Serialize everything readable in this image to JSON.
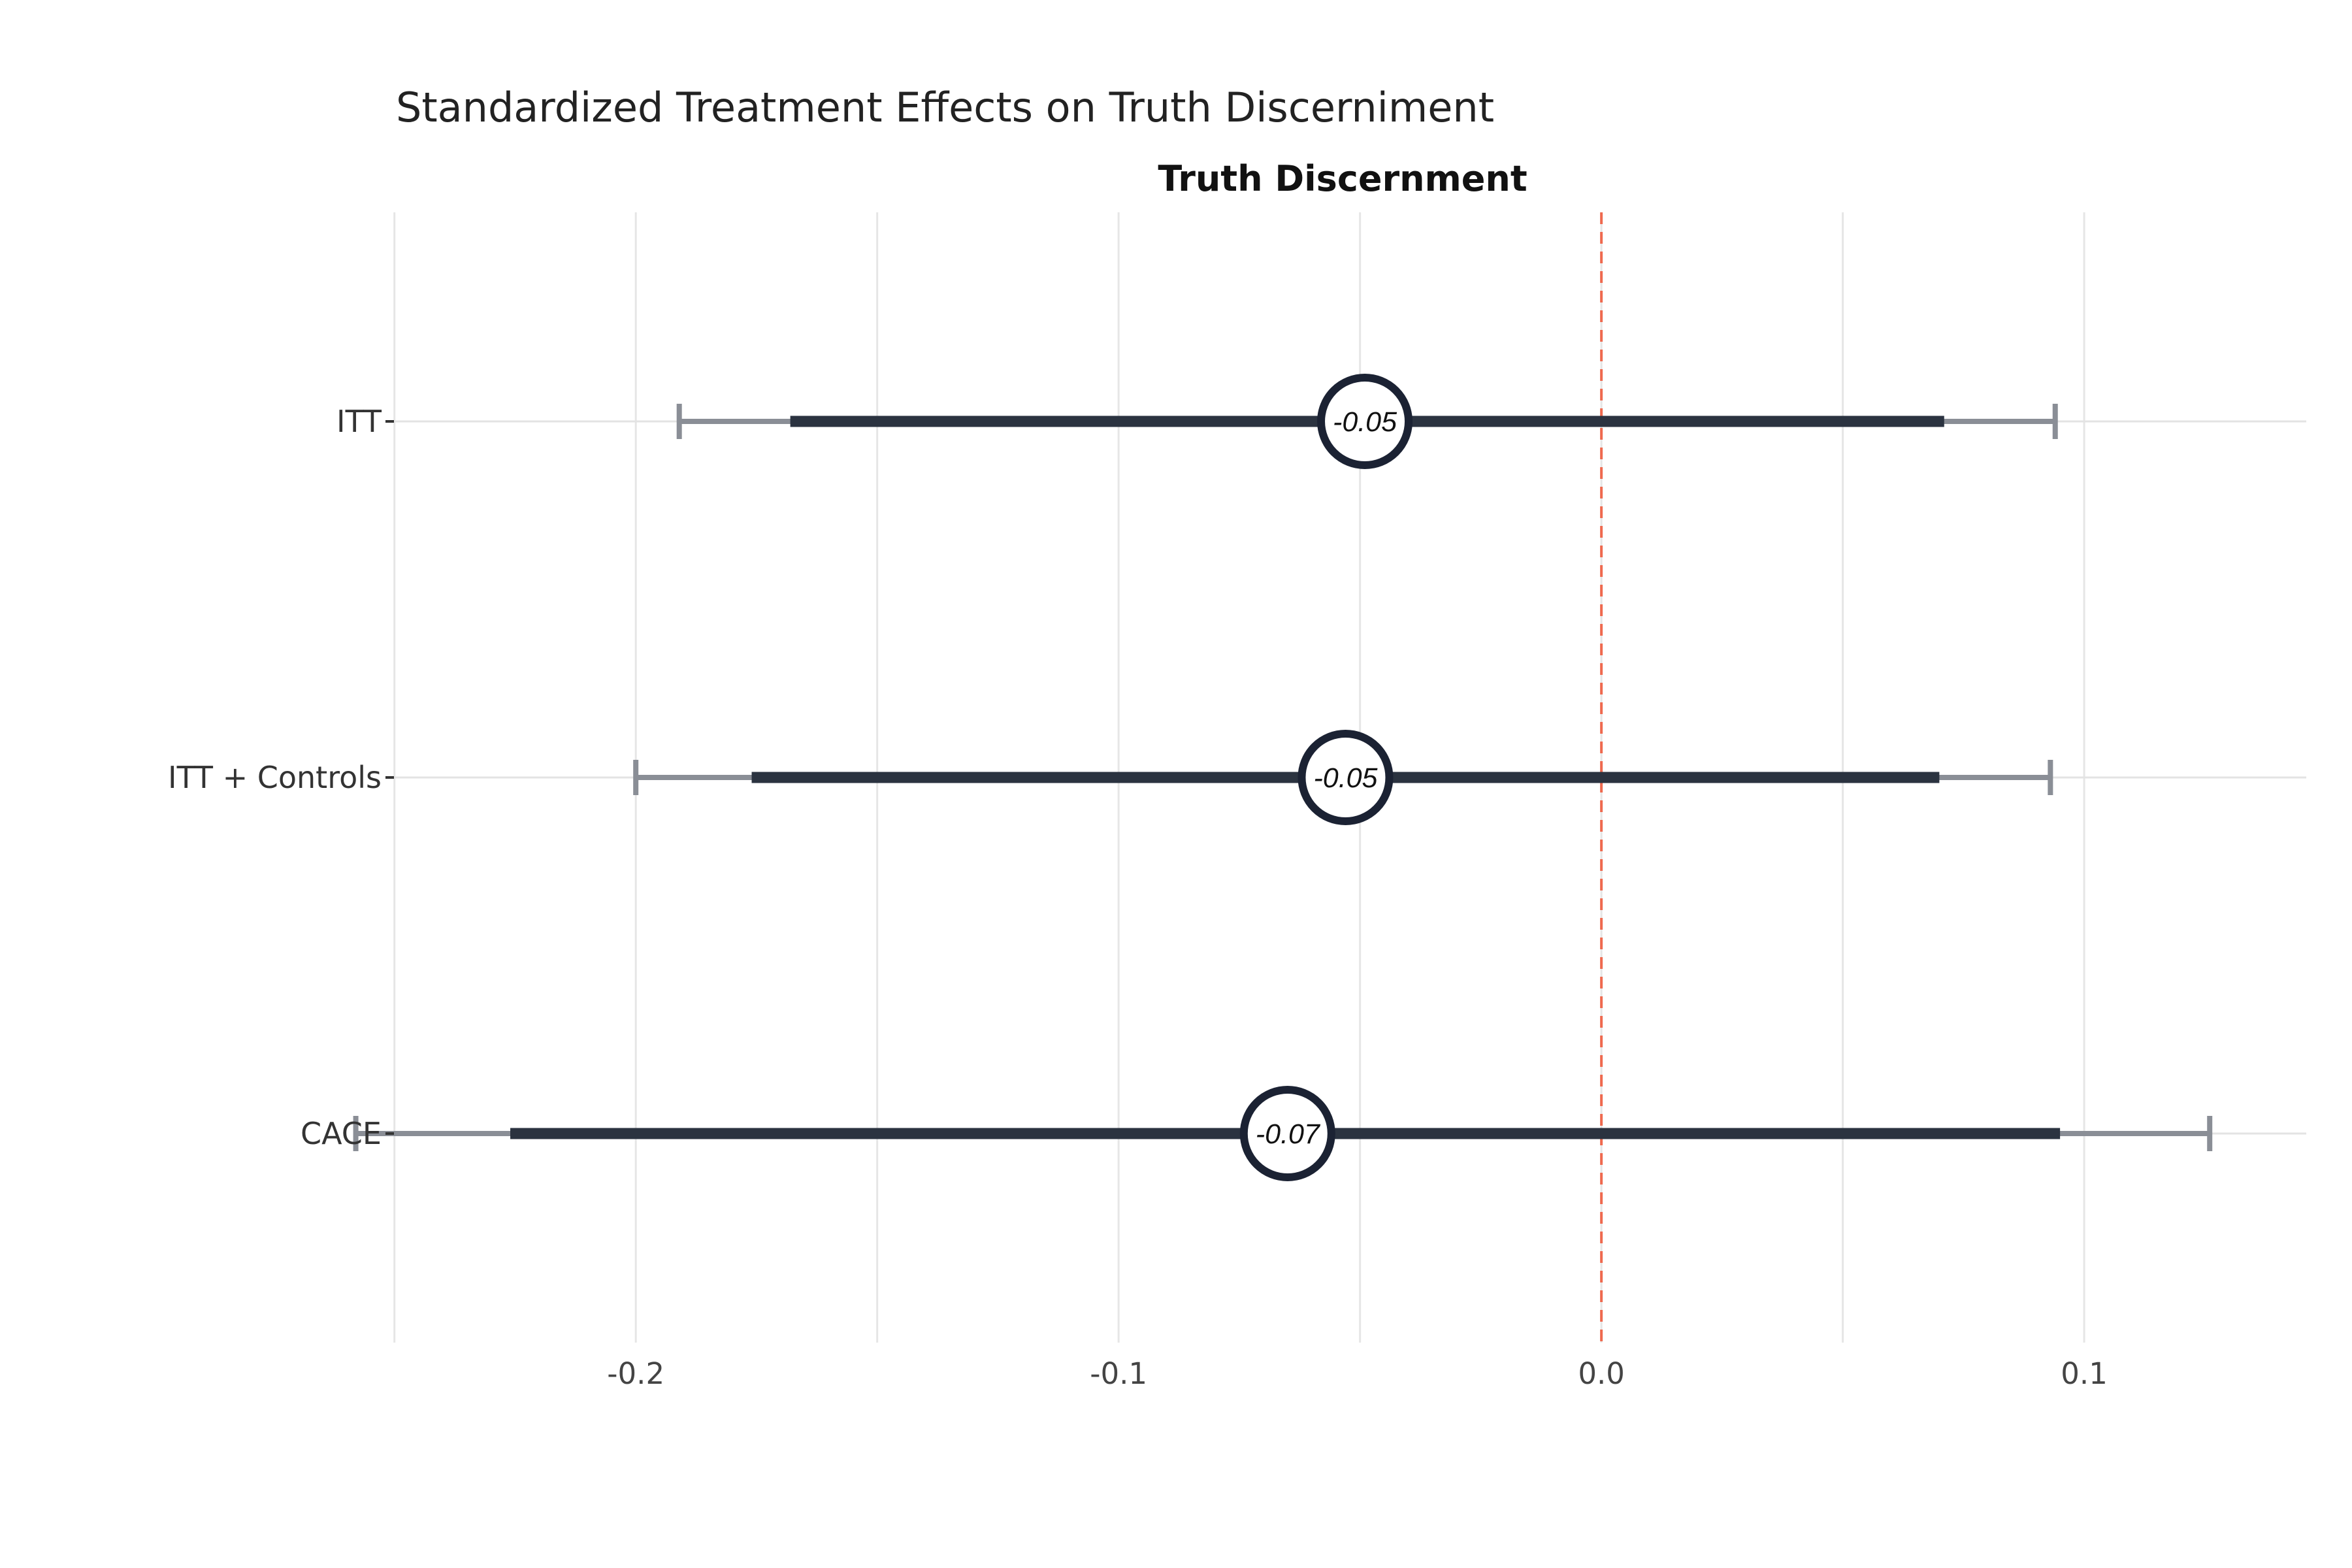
{
  "chart_data": {
    "type": "forest",
    "title": "Standardized Treatment Effects on Truth Discerniment",
    "subtitle": "Truth Discernment",
    "xlabel": "",
    "ylabel": "",
    "xlim": [
      -0.2505,
      0.146
    ],
    "x_ticks": [
      -0.2,
      -0.1,
      0.0,
      0.1
    ],
    "x_tick_labels": [
      "-0.2",
      "-0.1",
      "0.0",
      "0.1"
    ],
    "x_minor_gridlines": [
      -0.25,
      -0.15,
      -0.05,
      0.05
    ],
    "reference_line": {
      "x": 0,
      "style": "dashed",
      "color": "#ef6a4f"
    },
    "grid": true,
    "categories": [
      "ITT",
      "ITT + Controls",
      "CACE"
    ],
    "estimates": [
      {
        "label": "ITT",
        "estimate": -0.049,
        "ci_inner": [
          -0.168,
          0.071
        ],
        "ci_outer": [
          -0.191,
          0.094
        ],
        "point_label": "-0.05"
      },
      {
        "label": "ITT + Controls",
        "estimate": -0.053,
        "ci_inner": [
          -0.176,
          0.07
        ],
        "ci_outer": [
          -0.2,
          0.093
        ],
        "point_label": "-0.05"
      },
      {
        "label": "CACE",
        "estimate": -0.065,
        "ci_inner": [
          -0.226,
          0.095
        ],
        "ci_outer": [
          -0.258,
          0.126
        ],
        "point_label": "-0.07"
      }
    ],
    "colors": {
      "inner": "#2b3340",
      "outer": "#8a8e96",
      "marker": "#1b2233"
    }
  }
}
